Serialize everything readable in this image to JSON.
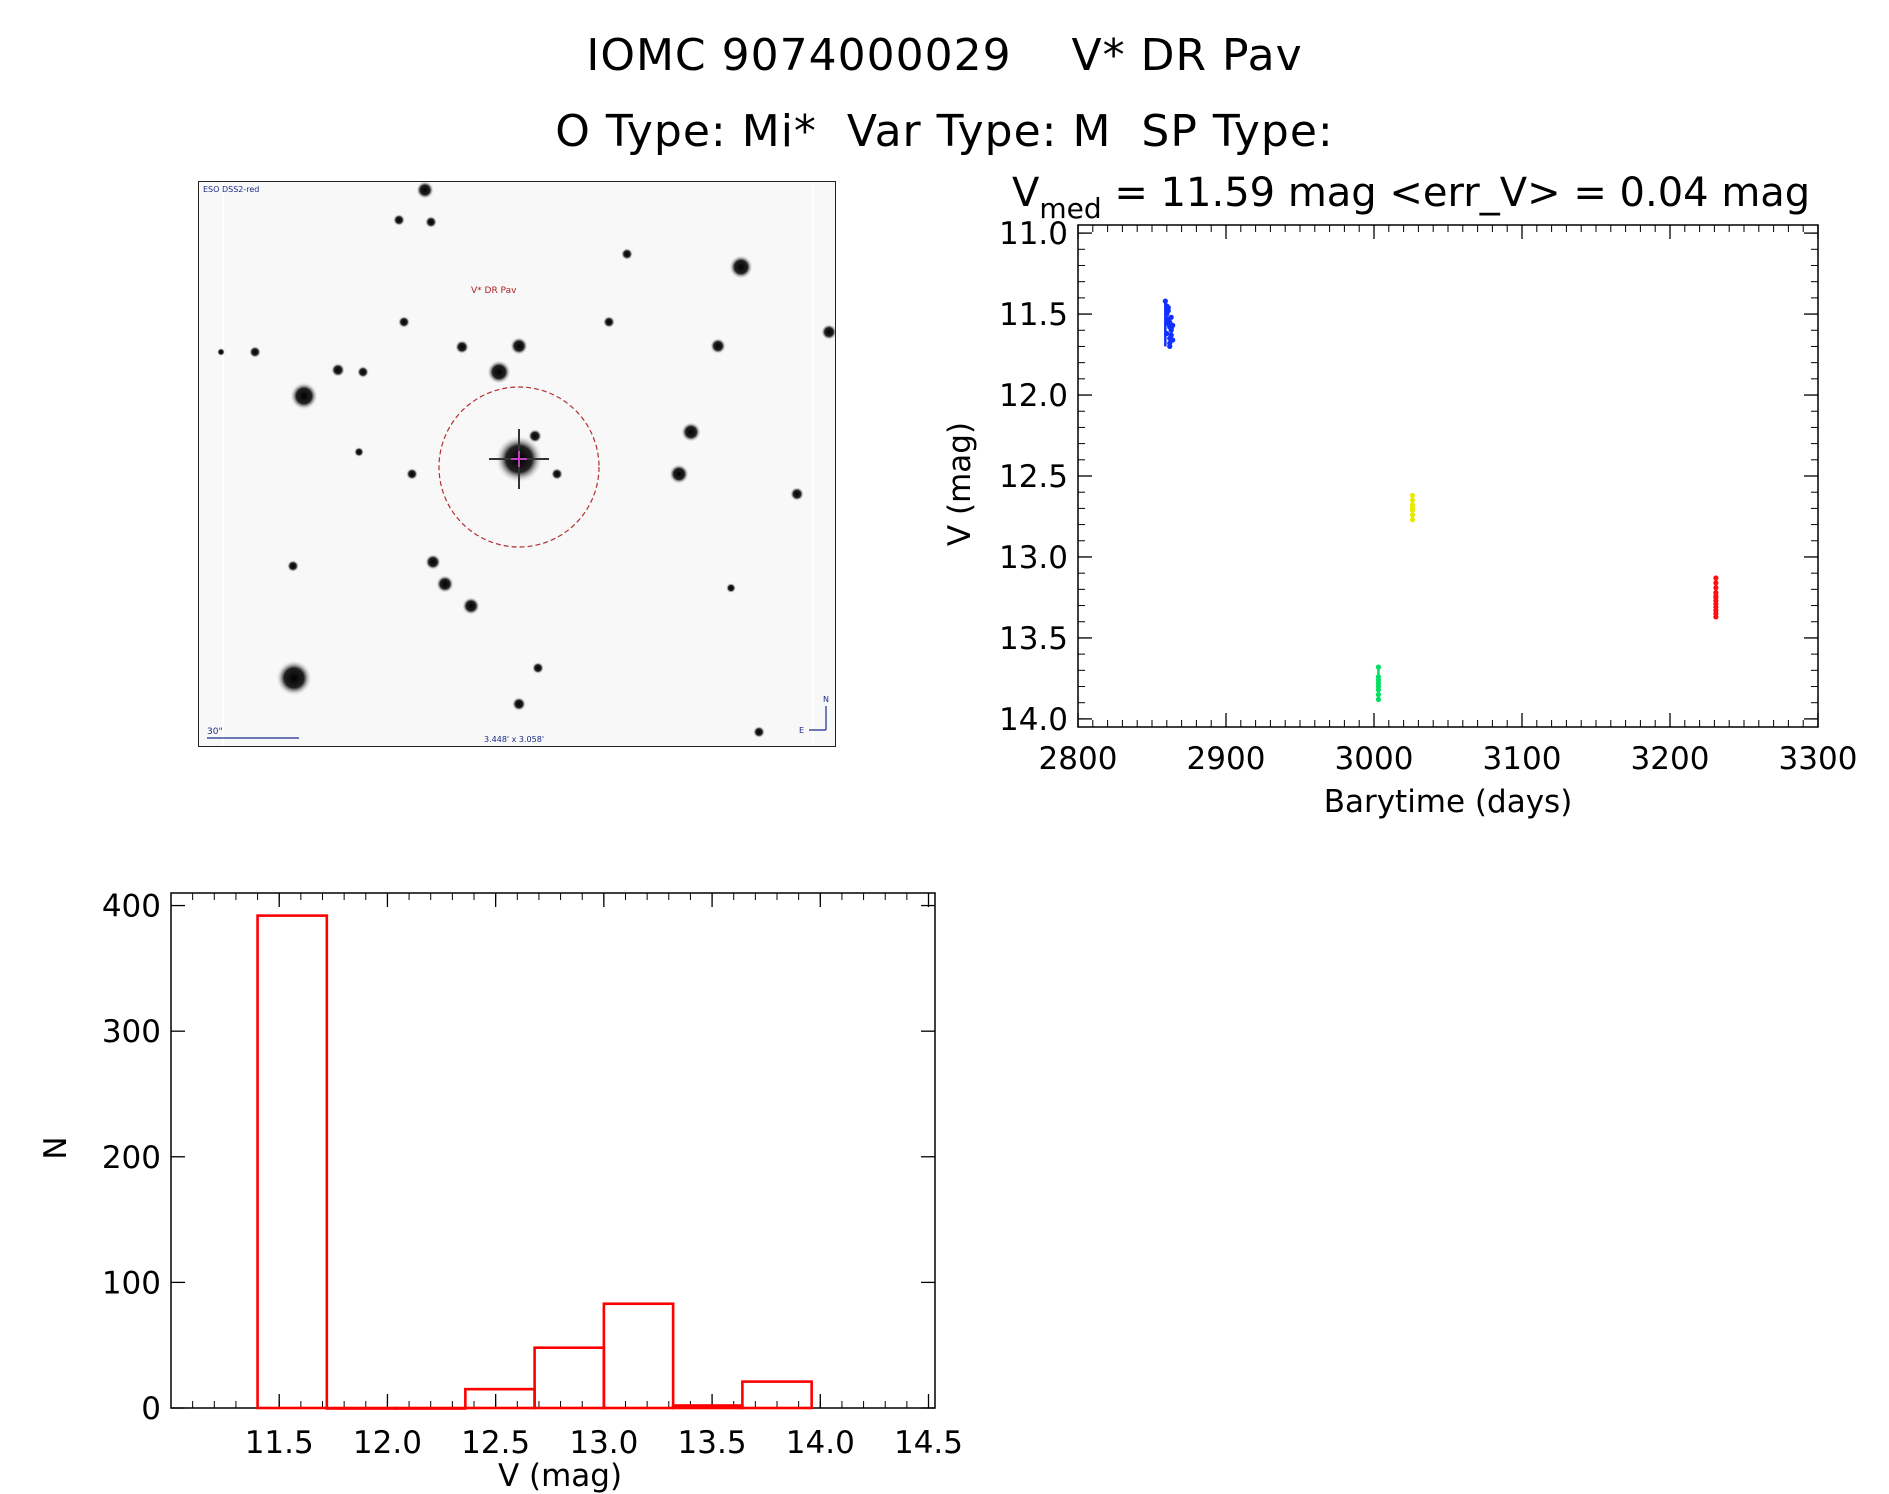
{
  "header": {
    "title_line1": "IOMC 9074000029    V* DR Pav",
    "title_line2": "O Type: Mi*  Var Type: M  SP Type:"
  },
  "finder": {
    "survey_label": "ESO DSS2-red",
    "object_label": "V* DR Pav",
    "scale_label": "30\"",
    "fov_label": "3.448' x 3.058'",
    "north_label": "N",
    "east_label": "E"
  },
  "chart_data": [
    {
      "type": "scatter",
      "title_main": "V",
      "title_sub": "med",
      "title_rest": " = 11.59 mag <err_V> = 0.04 mag",
      "xlabel": "Barytime (days)",
      "ylabel": "V (mag)",
      "xlim": [
        2800,
        3300
      ],
      "ylim": [
        14.0,
        11.0
      ],
      "y_inverted": true,
      "xticks": [
        2800,
        2900,
        3000,
        3100,
        3200,
        3300
      ],
      "yticks": [
        "11.0",
        "11.5",
        "12.0",
        "12.5",
        "13.0",
        "13.5",
        "14.0"
      ],
      "series": [
        {
          "color": "#1030ff",
          "x": [
            2859,
            2860,
            2860,
            2861,
            2861,
            2862,
            2862,
            2863,
            2863,
            2864,
            2860,
            2862,
            2861,
            2863,
            2862,
            2861,
            2864,
            2860,
            2862,
            2863
          ],
          "y": [
            11.42,
            11.45,
            11.5,
            11.48,
            11.53,
            11.55,
            11.58,
            11.52,
            11.6,
            11.57,
            11.62,
            11.65,
            11.56,
            11.63,
            11.68,
            11.46,
            11.66,
            11.55,
            11.7,
            11.59
          ]
        },
        {
          "color": "#00e060",
          "x": [
            3003,
            3003,
            3003,
            3003,
            3003,
            3003,
            3003,
            3003
          ],
          "y": [
            13.68,
            13.74,
            13.78,
            13.82,
            13.85,
            13.88,
            13.8,
            13.76
          ]
        },
        {
          "color": "#e8e800",
          "x": [
            3026,
            3026,
            3026,
            3026,
            3026,
            3026,
            3026
          ],
          "y": [
            12.62,
            12.65,
            12.68,
            12.71,
            12.74,
            12.77,
            12.7
          ]
        },
        {
          "color": "#ff1010",
          "x": [
            3231,
            3231,
            3231,
            3231,
            3231,
            3231,
            3231,
            3231,
            3231,
            3231,
            3231,
            3231
          ],
          "y": [
            13.13,
            13.16,
            13.19,
            13.22,
            13.25,
            13.27,
            13.29,
            13.31,
            13.33,
            13.35,
            13.37,
            13.24
          ]
        }
      ]
    },
    {
      "type": "bar",
      "xlabel": "V (mag)",
      "ylabel": "N",
      "xlim": [
        11.0,
        14.5
      ],
      "ylim": [
        0,
        410
      ],
      "xticks": [
        "11.5",
        "12.0",
        "12.5",
        "13.0",
        "13.5",
        "14.0",
        "14.5"
      ],
      "yticks": [
        "0",
        "100",
        "200",
        "300",
        "400"
      ],
      "bar_color": "#ff0000",
      "bins": [
        {
          "x0": 11.4,
          "x1": 11.72,
          "n": 392
        },
        {
          "x0": 11.72,
          "x1": 12.04,
          "n": 0
        },
        {
          "x0": 12.04,
          "x1": 12.36,
          "n": 0
        },
        {
          "x0": 12.36,
          "x1": 12.68,
          "n": 15
        },
        {
          "x0": 12.68,
          "x1": 13.0,
          "n": 48
        },
        {
          "x0": 13.0,
          "x1": 13.32,
          "n": 83
        },
        {
          "x0": 13.32,
          "x1": 13.64,
          "n": 2
        },
        {
          "x0": 13.64,
          "x1": 13.96,
          "n": 21
        }
      ]
    }
  ]
}
